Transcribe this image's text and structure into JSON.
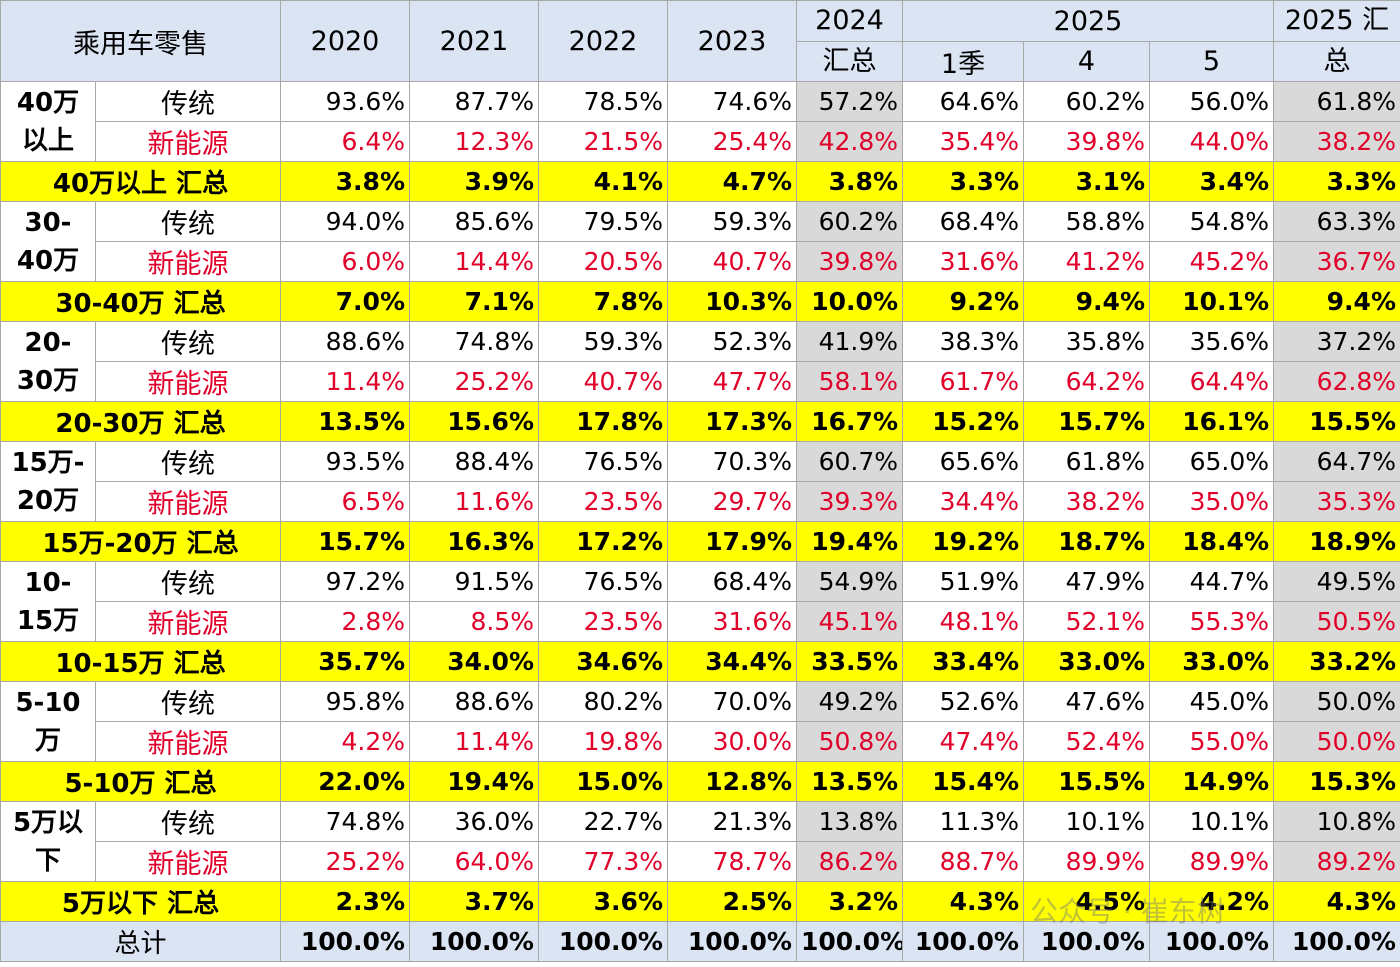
{
  "header": {
    "corner": "乘用车零售",
    "years": [
      "2020",
      "2021",
      "2022",
      "2023"
    ],
    "total_2024_line1": "2024",
    "total_2024_line2": "汇总",
    "year_2025": "2025",
    "sub_2025": [
      "1季",
      "4",
      "5"
    ],
    "total_2025_line1": "2025 汇",
    "total_2025_line2": "总"
  },
  "segments": [
    {
      "label_line1": "40万",
      "label_line2": "以上",
      "trad_label": "传统",
      "trad": [
        "93.6%",
        "87.7%",
        "78.5%",
        "74.6%",
        "57.2%",
        "64.6%",
        "60.2%",
        "56.0%",
        "61.8%"
      ],
      "nev_label": "新能源",
      "nev": [
        "6.4%",
        "12.3%",
        "21.5%",
        "25.4%",
        "42.8%",
        "35.4%",
        "39.8%",
        "44.0%",
        "38.2%"
      ],
      "sum_label": "40万以上 汇总",
      "sum": [
        "3.8%",
        "3.9%",
        "4.1%",
        "4.7%",
        "3.8%",
        "3.3%",
        "3.1%",
        "3.4%",
        "3.3%"
      ]
    },
    {
      "label_line1": "30-",
      "label_line2": "40万",
      "trad_label": "传统",
      "trad": [
        "94.0%",
        "85.6%",
        "79.5%",
        "59.3%",
        "60.2%",
        "68.4%",
        "58.8%",
        "54.8%",
        "63.3%"
      ],
      "nev_label": "新能源",
      "nev": [
        "6.0%",
        "14.4%",
        "20.5%",
        "40.7%",
        "39.8%",
        "31.6%",
        "41.2%",
        "45.2%",
        "36.7%"
      ],
      "sum_label": "30-40万 汇总",
      "sum": [
        "7.0%",
        "7.1%",
        "7.8%",
        "10.3%",
        "10.0%",
        "9.2%",
        "9.4%",
        "10.1%",
        "9.4%"
      ]
    },
    {
      "label_line1": "20-",
      "label_line2": "30万",
      "trad_label": "传统",
      "trad": [
        "88.6%",
        "74.8%",
        "59.3%",
        "52.3%",
        "41.9%",
        "38.3%",
        "35.8%",
        "35.6%",
        "37.2%"
      ],
      "nev_label": "新能源",
      "nev": [
        "11.4%",
        "25.2%",
        "40.7%",
        "47.7%",
        "58.1%",
        "61.7%",
        "64.2%",
        "64.4%",
        "62.8%"
      ],
      "sum_label": "20-30万 汇总",
      "sum": [
        "13.5%",
        "15.6%",
        "17.8%",
        "17.3%",
        "16.7%",
        "15.2%",
        "15.7%",
        "16.1%",
        "15.5%"
      ]
    },
    {
      "label_line1": "15万-",
      "label_line2": "20万",
      "trad_label": "传统",
      "trad": [
        "93.5%",
        "88.4%",
        "76.5%",
        "70.3%",
        "60.7%",
        "65.6%",
        "61.8%",
        "65.0%",
        "64.7%"
      ],
      "nev_label": "新能源",
      "nev": [
        "6.5%",
        "11.6%",
        "23.5%",
        "29.7%",
        "39.3%",
        "34.4%",
        "38.2%",
        "35.0%",
        "35.3%"
      ],
      "sum_label": "15万-20万 汇总",
      "sum": [
        "15.7%",
        "16.3%",
        "17.2%",
        "17.9%",
        "19.4%",
        "19.2%",
        "18.7%",
        "18.4%",
        "18.9%"
      ]
    },
    {
      "label_line1": "10-",
      "label_line2": "15万",
      "trad_label": "传统",
      "trad": [
        "97.2%",
        "91.5%",
        "76.5%",
        "68.4%",
        "54.9%",
        "51.9%",
        "47.9%",
        "44.7%",
        "49.5%"
      ],
      "nev_label": "新能源",
      "nev": [
        "2.8%",
        "8.5%",
        "23.5%",
        "31.6%",
        "45.1%",
        "48.1%",
        "52.1%",
        "55.3%",
        "50.5%"
      ],
      "sum_label": "10-15万 汇总",
      "sum": [
        "35.7%",
        "34.0%",
        "34.6%",
        "34.4%",
        "33.5%",
        "33.4%",
        "33.0%",
        "33.0%",
        "33.2%"
      ]
    },
    {
      "label_line1": "5-10",
      "label_line2": "万",
      "trad_label": "传统",
      "trad": [
        "95.8%",
        "88.6%",
        "80.2%",
        "70.0%",
        "49.2%",
        "52.6%",
        "47.6%",
        "45.0%",
        "50.0%"
      ],
      "nev_label": "新能源",
      "nev": [
        "4.2%",
        "11.4%",
        "19.8%",
        "30.0%",
        "50.8%",
        "47.4%",
        "52.4%",
        "55.0%",
        "50.0%"
      ],
      "sum_label": "5-10万 汇总",
      "sum": [
        "22.0%",
        "19.4%",
        "15.0%",
        "12.8%",
        "13.5%",
        "15.4%",
        "15.5%",
        "14.9%",
        "15.3%"
      ]
    },
    {
      "label_line1": "5万以",
      "label_line2": "下",
      "trad_label": "传统",
      "trad": [
        "74.8%",
        "36.0%",
        "22.7%",
        "21.3%",
        "13.8%",
        "11.3%",
        "10.1%",
        "10.1%",
        "10.8%"
      ],
      "nev_label": "新能源",
      "nev": [
        "25.2%",
        "64.0%",
        "77.3%",
        "78.7%",
        "86.2%",
        "88.7%",
        "89.9%",
        "89.9%",
        "89.2%"
      ],
      "sum_label": "5万以下 汇总",
      "sum": [
        "2.3%",
        "3.7%",
        "3.6%",
        "2.5%",
        "3.2%",
        "4.3%",
        "4.5%",
        "4.2%",
        "4.3%"
      ]
    }
  ],
  "total": {
    "label": "总计",
    "values": [
      "100.0%",
      "100.0%",
      "100.0%",
      "100.0%",
      "100.0%",
      "100.0%",
      "100.0%",
      "100.0%",
      "100.0%"
    ]
  },
  "watermark": "公众号 · 崔东树",
  "colors": {
    "header_bg": "#dbe4f3",
    "summary_bg": "#ffff00",
    "highlight_bg": "#d9d9d9",
    "nev_text": "#e0002a"
  }
}
